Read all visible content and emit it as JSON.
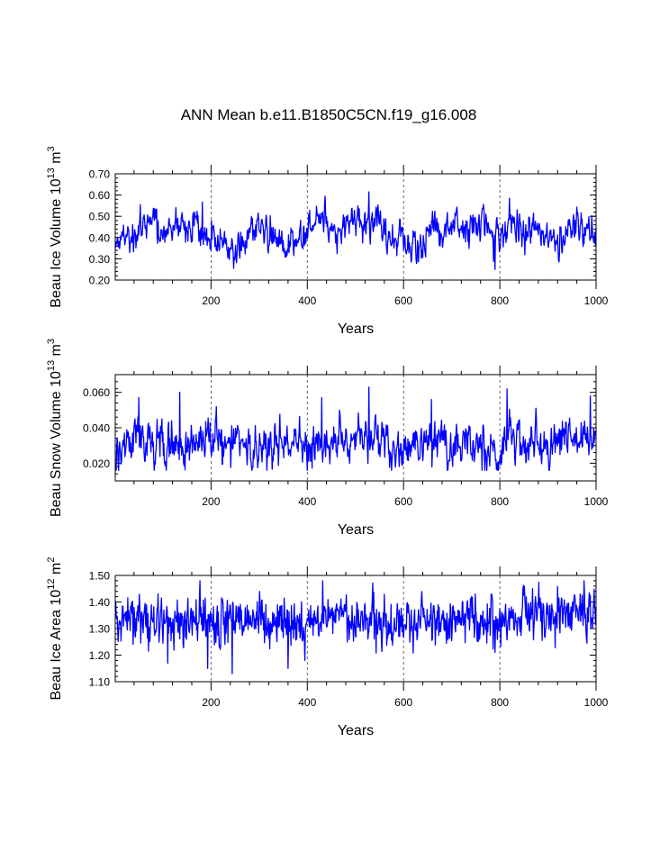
{
  "figure": {
    "title": "ANN Mean b.e11.B1850C5CN.f19_g16.008",
    "line_color": "#0000ff",
    "grid_color": "#444444"
  },
  "chart_data": [
    {
      "type": "line",
      "name": "beau-ice-volume",
      "ylabel": {
        "main": "Beau Ice Volume 10",
        "exp": "13",
        "unit": "m",
        "unit_exp": "3"
      },
      "xlabel": "Years",
      "xlim": [
        1,
        1000
      ],
      "ylim": [
        0.2,
        0.7
      ],
      "x_ticks": [
        200,
        400,
        600,
        800,
        1000
      ],
      "x_tick_labels": [
        "200",
        "400",
        "600",
        "800",
        "1000"
      ],
      "y_ticks": [
        0.2,
        0.3,
        0.4,
        0.5,
        0.6,
        0.7
      ],
      "y_tick_labels": [
        "0.20",
        "0.30",
        "0.40",
        "0.50",
        "0.60",
        "0.70"
      ],
      "vertical_dashed_gridlines": [
        200,
        400,
        600,
        800
      ],
      "series": [
        {
          "name": "Beau Ice Volume",
          "seed": 17,
          "years": 1000,
          "anchors": [
            [
              1,
              0.39
            ],
            [
              30,
              0.42
            ],
            [
              60,
              0.47
            ],
            [
              80,
              0.45
            ],
            [
              100,
              0.39
            ],
            [
              125,
              0.42
            ],
            [
              150,
              0.45
            ],
            [
              180,
              0.42
            ],
            [
              205,
              0.43
            ],
            [
              230,
              0.37
            ],
            [
              260,
              0.36
            ],
            [
              290,
              0.44
            ],
            [
              320,
              0.42
            ],
            [
              350,
              0.38
            ],
            [
              380,
              0.37
            ],
            [
              410,
              0.42
            ],
            [
              435,
              0.46
            ],
            [
              460,
              0.44
            ],
            [
              490,
              0.46
            ],
            [
              525,
              0.47
            ],
            [
              560,
              0.43
            ],
            [
              600,
              0.38
            ],
            [
              640,
              0.4
            ],
            [
              660,
              0.46
            ],
            [
              690,
              0.42
            ],
            [
              720,
              0.45
            ],
            [
              760,
              0.44
            ],
            [
              785,
              0.4
            ],
            [
              800,
              0.38
            ],
            [
              820,
              0.48
            ],
            [
              850,
              0.44
            ],
            [
              880,
              0.43
            ],
            [
              910,
              0.43
            ],
            [
              940,
              0.42
            ],
            [
              970,
              0.44
            ],
            [
              1000,
              0.45
            ]
          ],
          "noise": 0.045,
          "ar": 0.55,
          "min_value": 0.25,
          "max_value": 0.62,
          "spikes": [
            [
              528,
              0.615
            ],
            [
              437,
              0.595
            ],
            [
              820,
              0.585
            ],
            [
              53,
              0.555
            ],
            [
              182,
              0.567
            ],
            [
              790,
              0.25
            ],
            [
              247,
              0.255
            ]
          ]
        }
      ]
    },
    {
      "type": "line",
      "name": "beau-snow-volume",
      "ylabel": {
        "main": "Beau Snow Volume 10",
        "exp": "13",
        "unit": "m",
        "unit_exp": "3"
      },
      "xlabel": "Years",
      "xlim": [
        1,
        1000
      ],
      "ylim": [
        0.01,
        0.07
      ],
      "x_ticks": [
        200,
        400,
        600,
        800,
        1000
      ],
      "x_tick_labels": [
        "200",
        "400",
        "600",
        "800",
        "1000"
      ],
      "y_ticks": [
        0.02,
        0.04,
        0.06
      ],
      "y_tick_labels": [
        "0.020",
        "0.040",
        "0.060"
      ],
      "vertical_dashed_gridlines": [
        200,
        400,
        600,
        800
      ],
      "series": [
        {
          "name": "Beau Snow Volume",
          "seed": 29,
          "years": 1000,
          "anchors": [
            [
              1,
              0.029
            ],
            [
              40,
              0.032
            ],
            [
              60,
              0.034
            ],
            [
              90,
              0.03
            ],
            [
              130,
              0.031
            ],
            [
              160,
              0.03
            ],
            [
              200,
              0.033
            ],
            [
              230,
              0.031
            ],
            [
              270,
              0.028
            ],
            [
              310,
              0.03
            ],
            [
              350,
              0.031
            ],
            [
              390,
              0.029
            ],
            [
              430,
              0.033
            ],
            [
              470,
              0.03
            ],
            [
              520,
              0.036
            ],
            [
              560,
              0.029
            ],
            [
              600,
              0.026
            ],
            [
              630,
              0.03
            ],
            [
              660,
              0.034
            ],
            [
              690,
              0.031
            ],
            [
              730,
              0.03
            ],
            [
              770,
              0.028
            ],
            [
              800,
              0.025
            ],
            [
              820,
              0.038
            ],
            [
              850,
              0.031
            ],
            [
              880,
              0.029
            ],
            [
              920,
              0.031
            ],
            [
              960,
              0.033
            ],
            [
              1000,
              0.036
            ]
          ],
          "noise": 0.0065,
          "ar": 0.5,
          "min_value": 0.016,
          "max_value": 0.063,
          "spikes": [
            [
              528,
              0.063
            ],
            [
              815,
              0.062
            ],
            [
              135,
              0.06
            ],
            [
              658,
              0.056
            ],
            [
              50,
              0.057
            ],
            [
              430,
              0.057
            ],
            [
              988,
              0.058
            ],
            [
              763,
              0.016
            ]
          ]
        }
      ]
    },
    {
      "type": "line",
      "name": "beau-ice-area",
      "ylabel": {
        "main": "Beau Ice Area 10",
        "exp": "12",
        "unit": "m",
        "unit_exp": "2"
      },
      "xlabel": "Years",
      "xlim": [
        1,
        1000
      ],
      "ylim": [
        1.1,
        1.5
      ],
      "x_ticks": [
        200,
        400,
        600,
        800,
        1000
      ],
      "x_tick_labels": [
        "200",
        "400",
        "600",
        "800",
        "1000"
      ],
      "y_ticks": [
        1.1,
        1.2,
        1.3,
        1.4,
        1.5
      ],
      "y_tick_labels": [
        "1.10",
        "1.20",
        "1.30",
        "1.40",
        "1.50"
      ],
      "vertical_dashed_gridlines": [
        200,
        400,
        600,
        800
      ],
      "series": [
        {
          "name": "Beau Ice Area",
          "seed": 41,
          "years": 1000,
          "anchors": [
            [
              1,
              1.34
            ],
            [
              50,
              1.34
            ],
            [
              100,
              1.31
            ],
            [
              150,
              1.33
            ],
            [
              200,
              1.32
            ],
            [
              250,
              1.33
            ],
            [
              300,
              1.34
            ],
            [
              350,
              1.32
            ],
            [
              400,
              1.31
            ],
            [
              450,
              1.36
            ],
            [
              500,
              1.34
            ],
            [
              550,
              1.33
            ],
            [
              600,
              1.32
            ],
            [
              650,
              1.34
            ],
            [
              700,
              1.33
            ],
            [
              750,
              1.34
            ],
            [
              800,
              1.32
            ],
            [
              850,
              1.36
            ],
            [
              900,
              1.35
            ],
            [
              950,
              1.34
            ],
            [
              1000,
              1.35
            ]
          ],
          "noise": 0.045,
          "ar": 0.25,
          "min_value": 1.13,
          "max_value": 1.48,
          "spikes": [
            [
              177,
              1.48
            ],
            [
              432,
              1.48
            ],
            [
              975,
              1.48
            ],
            [
              244,
              1.13
            ],
            [
              193,
              1.15
            ],
            [
              360,
              1.15
            ],
            [
              110,
              1.17
            ],
            [
              395,
              1.18
            ],
            [
              790,
              1.21
            ]
          ]
        }
      ]
    }
  ]
}
